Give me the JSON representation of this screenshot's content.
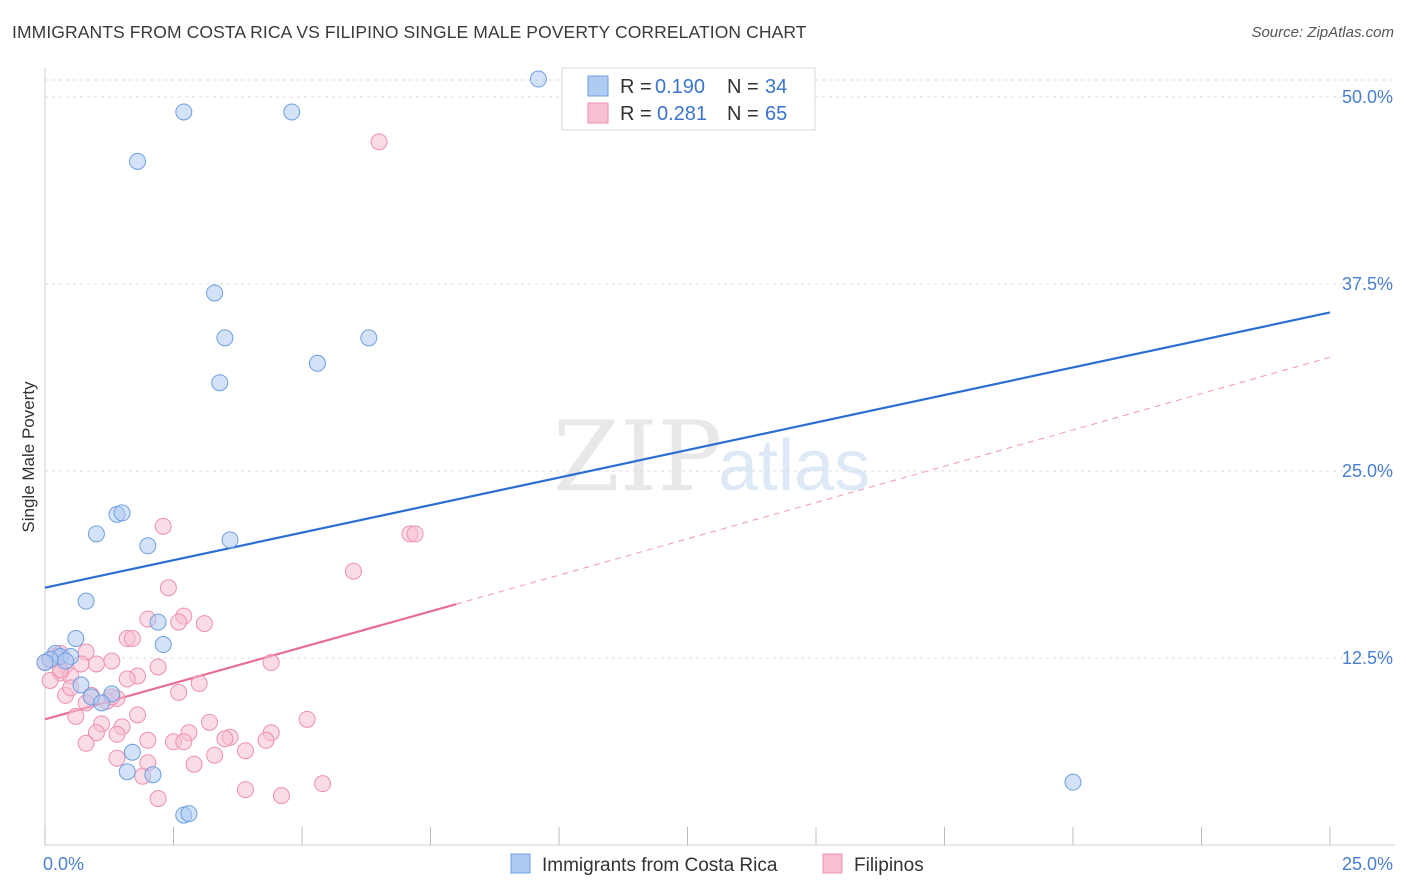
{
  "header": {
    "title": "IMMIGRANTS FROM COSTA RICA VS FILIPINO SINGLE MALE POVERTY CORRELATION CHART",
    "source": "Source: ZipAtlas.com"
  },
  "watermark": {
    "zip": "ZIP",
    "atlas": "atlas"
  },
  "colors": {
    "blue_fill": "#aecbf2",
    "blue_stroke": "#6d9fe0",
    "blue_line": "#2b6fd1",
    "pink_fill": "#f6bfd2",
    "pink_stroke": "#ee8fb1",
    "pink_line": "#e86b9a",
    "tick_text": "#4a7fd0",
    "grid": "#dddddd"
  },
  "chart_data": {
    "type": "scatter",
    "ylabel": "Single Male Poverty",
    "xlim": [
      0,
      25
    ],
    "ylim": [
      0,
      50
    ],
    "x_ticks": [
      0,
      2.5,
      5,
      7.5,
      10,
      12.5,
      15,
      17.5,
      20,
      22.5,
      25
    ],
    "x_tick_labels": [
      "0.0%",
      "",
      "",
      "",
      "",
      "",
      "",
      "",
      "",
      "",
      "25.0%"
    ],
    "y_ticks": [
      12.5,
      25,
      37.5,
      50
    ],
    "y_tick_labels": [
      "12.5%",
      "25.0%",
      "37.5%",
      "50.0%"
    ],
    "grid": true,
    "legend": {
      "placement": "top-center",
      "rows": [
        {
          "r_label": "R =",
          "r_value": "0.190",
          "n_label": "N =",
          "n_value": "34"
        },
        {
          "r_label": "R =",
          "r_value": "0.281",
          "n_label": "N =",
          "n_value": "65"
        }
      ]
    },
    "series": [
      {
        "name": "Immigrants from Costa Rica",
        "color": "blue",
        "points": [
          [
            9.6,
            51.2
          ],
          [
            2.7,
            49.0
          ],
          [
            4.8,
            49.0
          ],
          [
            1.8,
            45.7
          ],
          [
            3.3,
            36.9
          ],
          [
            3.5,
            33.9
          ],
          [
            6.3,
            33.9
          ],
          [
            5.3,
            32.2
          ],
          [
            3.4,
            30.9
          ],
          [
            1.4,
            22.1
          ],
          [
            1.5,
            22.2
          ],
          [
            1.0,
            20.8
          ],
          [
            2.0,
            20.0
          ],
          [
            3.6,
            20.4
          ],
          [
            0.8,
            16.3
          ],
          [
            2.2,
            14.9
          ],
          [
            0.6,
            13.8
          ],
          [
            2.3,
            13.4
          ],
          [
            0.2,
            12.8
          ],
          [
            0.3,
            12.6
          ],
          [
            0.1,
            12.4
          ],
          [
            0.0,
            12.2
          ],
          [
            0.5,
            12.6
          ],
          [
            0.4,
            12.3
          ],
          [
            0.7,
            10.7
          ],
          [
            0.9,
            9.9
          ],
          [
            1.3,
            10.1
          ],
          [
            1.1,
            9.5
          ],
          [
            1.7,
            6.2
          ],
          [
            1.6,
            4.9
          ],
          [
            2.1,
            4.7
          ],
          [
            2.7,
            2.0
          ],
          [
            2.8,
            2.1
          ],
          [
            20.0,
            4.2
          ]
        ]
      },
      {
        "name": "Filipinos",
        "color": "pink",
        "points": [
          [
            6.5,
            47.0
          ],
          [
            7.1,
            20.8
          ],
          [
            7.2,
            20.8
          ],
          [
            2.3,
            21.3
          ],
          [
            6.0,
            18.3
          ],
          [
            2.4,
            17.2
          ],
          [
            2.7,
            15.3
          ],
          [
            2.0,
            15.1
          ],
          [
            3.1,
            14.8
          ],
          [
            2.6,
            14.9
          ],
          [
            1.6,
            13.8
          ],
          [
            1.7,
            13.8
          ],
          [
            0.8,
            12.9
          ],
          [
            0.3,
            12.8
          ],
          [
            0.2,
            12.6
          ],
          [
            0.1,
            12.4
          ],
          [
            0.0,
            12.2
          ],
          [
            0.4,
            12.0
          ],
          [
            0.7,
            12.1
          ],
          [
            1.3,
            12.3
          ],
          [
            1.0,
            12.1
          ],
          [
            2.2,
            11.9
          ],
          [
            4.4,
            12.2
          ],
          [
            0.3,
            11.5
          ],
          [
            0.5,
            11.3
          ],
          [
            1.8,
            11.3
          ],
          [
            1.6,
            11.1
          ],
          [
            0.1,
            11.0
          ],
          [
            3.0,
            10.8
          ],
          [
            2.6,
            10.2
          ],
          [
            0.4,
            10.0
          ],
          [
            0.9,
            10.0
          ],
          [
            1.4,
            9.8
          ],
          [
            0.8,
            9.5
          ],
          [
            1.2,
            9.6
          ],
          [
            0.6,
            8.6
          ],
          [
            1.8,
            8.7
          ],
          [
            5.1,
            8.4
          ],
          [
            3.2,
            8.2
          ],
          [
            1.1,
            8.1
          ],
          [
            1.5,
            7.9
          ],
          [
            1.0,
            7.5
          ],
          [
            1.4,
            7.4
          ],
          [
            2.8,
            7.5
          ],
          [
            4.4,
            7.5
          ],
          [
            3.6,
            7.2
          ],
          [
            3.5,
            7.1
          ],
          [
            4.3,
            7.0
          ],
          [
            2.0,
            7.0
          ],
          [
            2.5,
            6.9
          ],
          [
            2.7,
            6.9
          ],
          [
            0.8,
            6.8
          ],
          [
            3.9,
            6.3
          ],
          [
            3.3,
            6.0
          ],
          [
            1.4,
            5.8
          ],
          [
            2.0,
            5.5
          ],
          [
            2.9,
            5.4
          ],
          [
            1.9,
            4.6
          ],
          [
            5.4,
            4.1
          ],
          [
            3.9,
            3.7
          ],
          [
            4.6,
            3.3
          ],
          [
            2.2,
            3.1
          ],
          [
            0.3,
            11.7
          ],
          [
            1.3,
            9.9
          ],
          [
            0.5,
            10.5
          ]
        ]
      }
    ],
    "trend_lines": [
      {
        "series": "Immigrants from Costa Rica",
        "style": "solid",
        "from": [
          0,
          17.2
        ],
        "to": [
          25,
          35.6
        ]
      },
      {
        "series": "Filipinos",
        "style": "solid",
        "from": [
          0,
          8.4
        ],
        "to": [
          8.0,
          16.1
        ]
      },
      {
        "series": "Filipinos",
        "style": "dashed",
        "from": [
          8.0,
          16.1
        ],
        "to": [
          25,
          32.6
        ]
      }
    ]
  },
  "bottom_legend": [
    {
      "label": "Immigrants from Costa Rica",
      "color": "blue"
    },
    {
      "label": "Filipinos",
      "color": "pink"
    }
  ]
}
